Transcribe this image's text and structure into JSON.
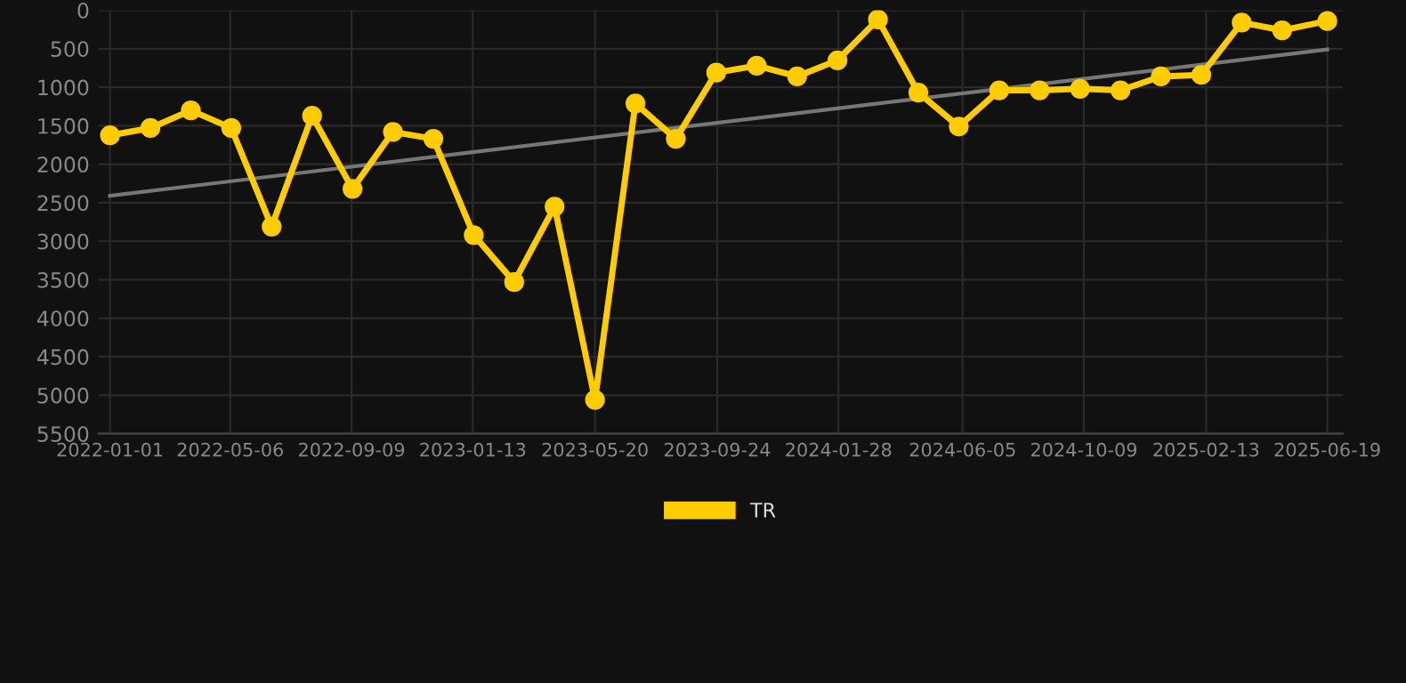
{
  "chart_data": {
    "type": "line",
    "x": [
      "2022-01-01",
      "2022-02-12",
      "2022-03-26",
      "2022-05-07",
      "2022-06-18",
      "2022-07-30",
      "2022-09-10",
      "2022-10-22",
      "2022-12-03",
      "2023-01-14",
      "2023-02-25",
      "2023-04-08",
      "2023-05-20",
      "2023-07-01",
      "2023-08-12",
      "2023-09-23",
      "2023-11-04",
      "2023-12-16",
      "2024-01-27",
      "2024-03-09",
      "2024-04-20",
      "2024-06-01",
      "2024-07-13",
      "2024-08-24",
      "2024-10-05",
      "2024-11-16",
      "2024-12-28",
      "2025-02-08",
      "2025-03-22",
      "2025-05-03",
      "2025-06-19"
    ],
    "series": [
      {
        "name": "TR",
        "color": "#ffcc00",
        "marker": "circle",
        "values": [
          1625,
          1530,
          1300,
          1530,
          2810,
          1370,
          2320,
          1580,
          1670,
          2920,
          3530,
          2550,
          5060,
          1210,
          1670,
          810,
          720,
          860,
          650,
          120,
          1070,
          1510,
          1040,
          1040,
          1020,
          1040,
          860,
          840,
          160,
          260,
          140
        ]
      },
      {
        "type": "line",
        "color": "#777777",
        "marker": "none",
        "x": [
          "2022-01-01",
          "2025-06-19"
        ],
        "values": [
          2410,
          510
        ]
      }
    ],
    "ylim": [
      5500,
      0
    ],
    "yticks": [
      0,
      500,
      1000,
      1500,
      2000,
      2500,
      3000,
      3500,
      4000,
      4500,
      5000,
      5500
    ],
    "xlim": [
      "2021-12-20",
      "2025-07-05"
    ],
    "xticks": [
      {
        "value": "2022-01-01",
        "label": "2022-01-01"
      },
      {
        "value": "2022-05-06",
        "label": "2022-05-06"
      },
      {
        "value": "2022-09-09",
        "label": "2022-09-09"
      },
      {
        "value": "2023-01-13",
        "label": "2023-01-13"
      },
      {
        "value": "2023-05-20",
        "label": "2023-05-20"
      },
      {
        "value": "2023-09-24",
        "label": "2023-09-24"
      },
      {
        "value": "2024-01-28",
        "label": "2024-01-28"
      },
      {
        "value": "2024-06-05",
        "label": "2024-06-05"
      },
      {
        "value": "2024-10-09",
        "label": "2024-10-09"
      },
      {
        "value": "2025-02-13",
        "label": "2025-02-13"
      },
      {
        "value": "2025-06-19",
        "label": "2025-06-19"
      }
    ],
    "grid": true,
    "legend": "bottom"
  }
}
